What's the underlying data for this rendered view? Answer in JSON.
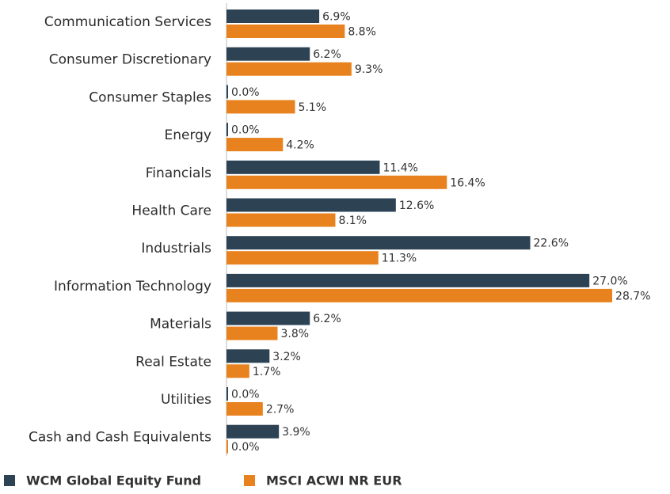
{
  "chart_data": {
    "type": "bar",
    "orientation": "horizontal",
    "categories": [
      "Communication Services",
      "Consumer Discretionary",
      "Consumer Staples",
      "Energy",
      "Financials",
      "Health Care",
      "Industrials",
      "Information Technology",
      "Materials",
      "Real Estate",
      "Utilities",
      "Cash and Cash Equivalents"
    ],
    "series": [
      {
        "name": "WCM Global Equity Fund",
        "color": "#2d4354",
        "values": [
          6.9,
          6.2,
          0.0,
          0.0,
          11.4,
          12.6,
          22.6,
          27.0,
          6.2,
          3.2,
          0.0,
          3.9
        ],
        "value_labels": [
          "6.9%",
          "6.2%",
          "0.0%",
          "0.0%",
          "11.4%",
          "12.6%",
          "22.6%",
          "27.0%",
          "6.2%",
          "3.2%",
          "0.0%",
          "3.9%"
        ]
      },
      {
        "name": "MSCI ACWI NR EUR",
        "color": "#e8821e",
        "values": [
          8.8,
          9.3,
          5.1,
          4.2,
          16.4,
          8.1,
          11.3,
          28.7,
          3.8,
          1.7,
          2.7,
          0.0
        ],
        "value_labels": [
          "8.8%",
          "9.3%",
          "5.1%",
          "4.2%",
          "16.4%",
          "8.1%",
          "11.3%",
          "28.7%",
          "3.8%",
          "1.7%",
          "2.7%",
          "0.0%"
        ]
      }
    ],
    "legend": "bottom-left"
  }
}
